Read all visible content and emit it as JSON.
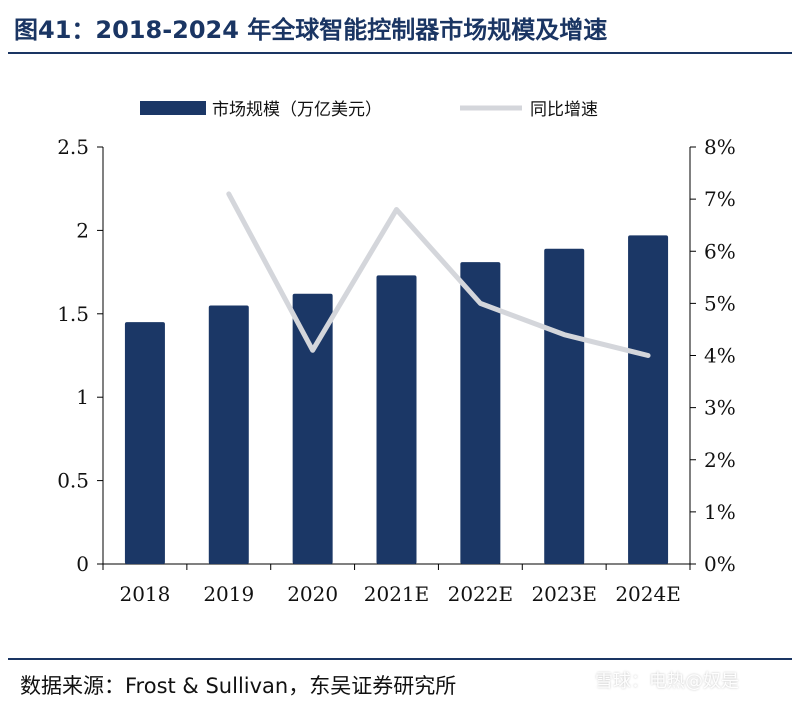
{
  "title": "图41：2018-2024 年全球智能控制器市场规模及增速",
  "source": "数据来源：Frost & Sullivan，东吴证券研究所",
  "watermark": "雪球：电热@奴是",
  "colors": {
    "bar": "#1b3766",
    "line": "#d4d6db",
    "title": "#1a3563"
  },
  "chart_data": {
    "type": "bar+line",
    "categories": [
      "2018",
      "2019",
      "2020",
      "2021E",
      "2022E",
      "2023E",
      "2024E"
    ],
    "series": [
      {
        "name": "市场规模（万亿美元）",
        "type": "bar",
        "axis": "left",
        "values": [
          1.45,
          1.55,
          1.62,
          1.73,
          1.81,
          1.89,
          1.97
        ]
      },
      {
        "name": "同比增速",
        "type": "line",
        "axis": "right",
        "values": [
          null,
          7.1,
          4.1,
          6.8,
          5.0,
          4.4,
          4.0
        ]
      }
    ],
    "ylim_left": [
      0,
      2.5
    ],
    "yticks_left": [
      "0",
      "0.5",
      "1",
      "1.5",
      "2",
      "2.5"
    ],
    "ylim_right": [
      0,
      8
    ],
    "yticks_right": [
      "0%",
      "1%",
      "2%",
      "3%",
      "4%",
      "5%",
      "6%",
      "7%",
      "8%"
    ],
    "legend_position": "top",
    "grid": false
  }
}
